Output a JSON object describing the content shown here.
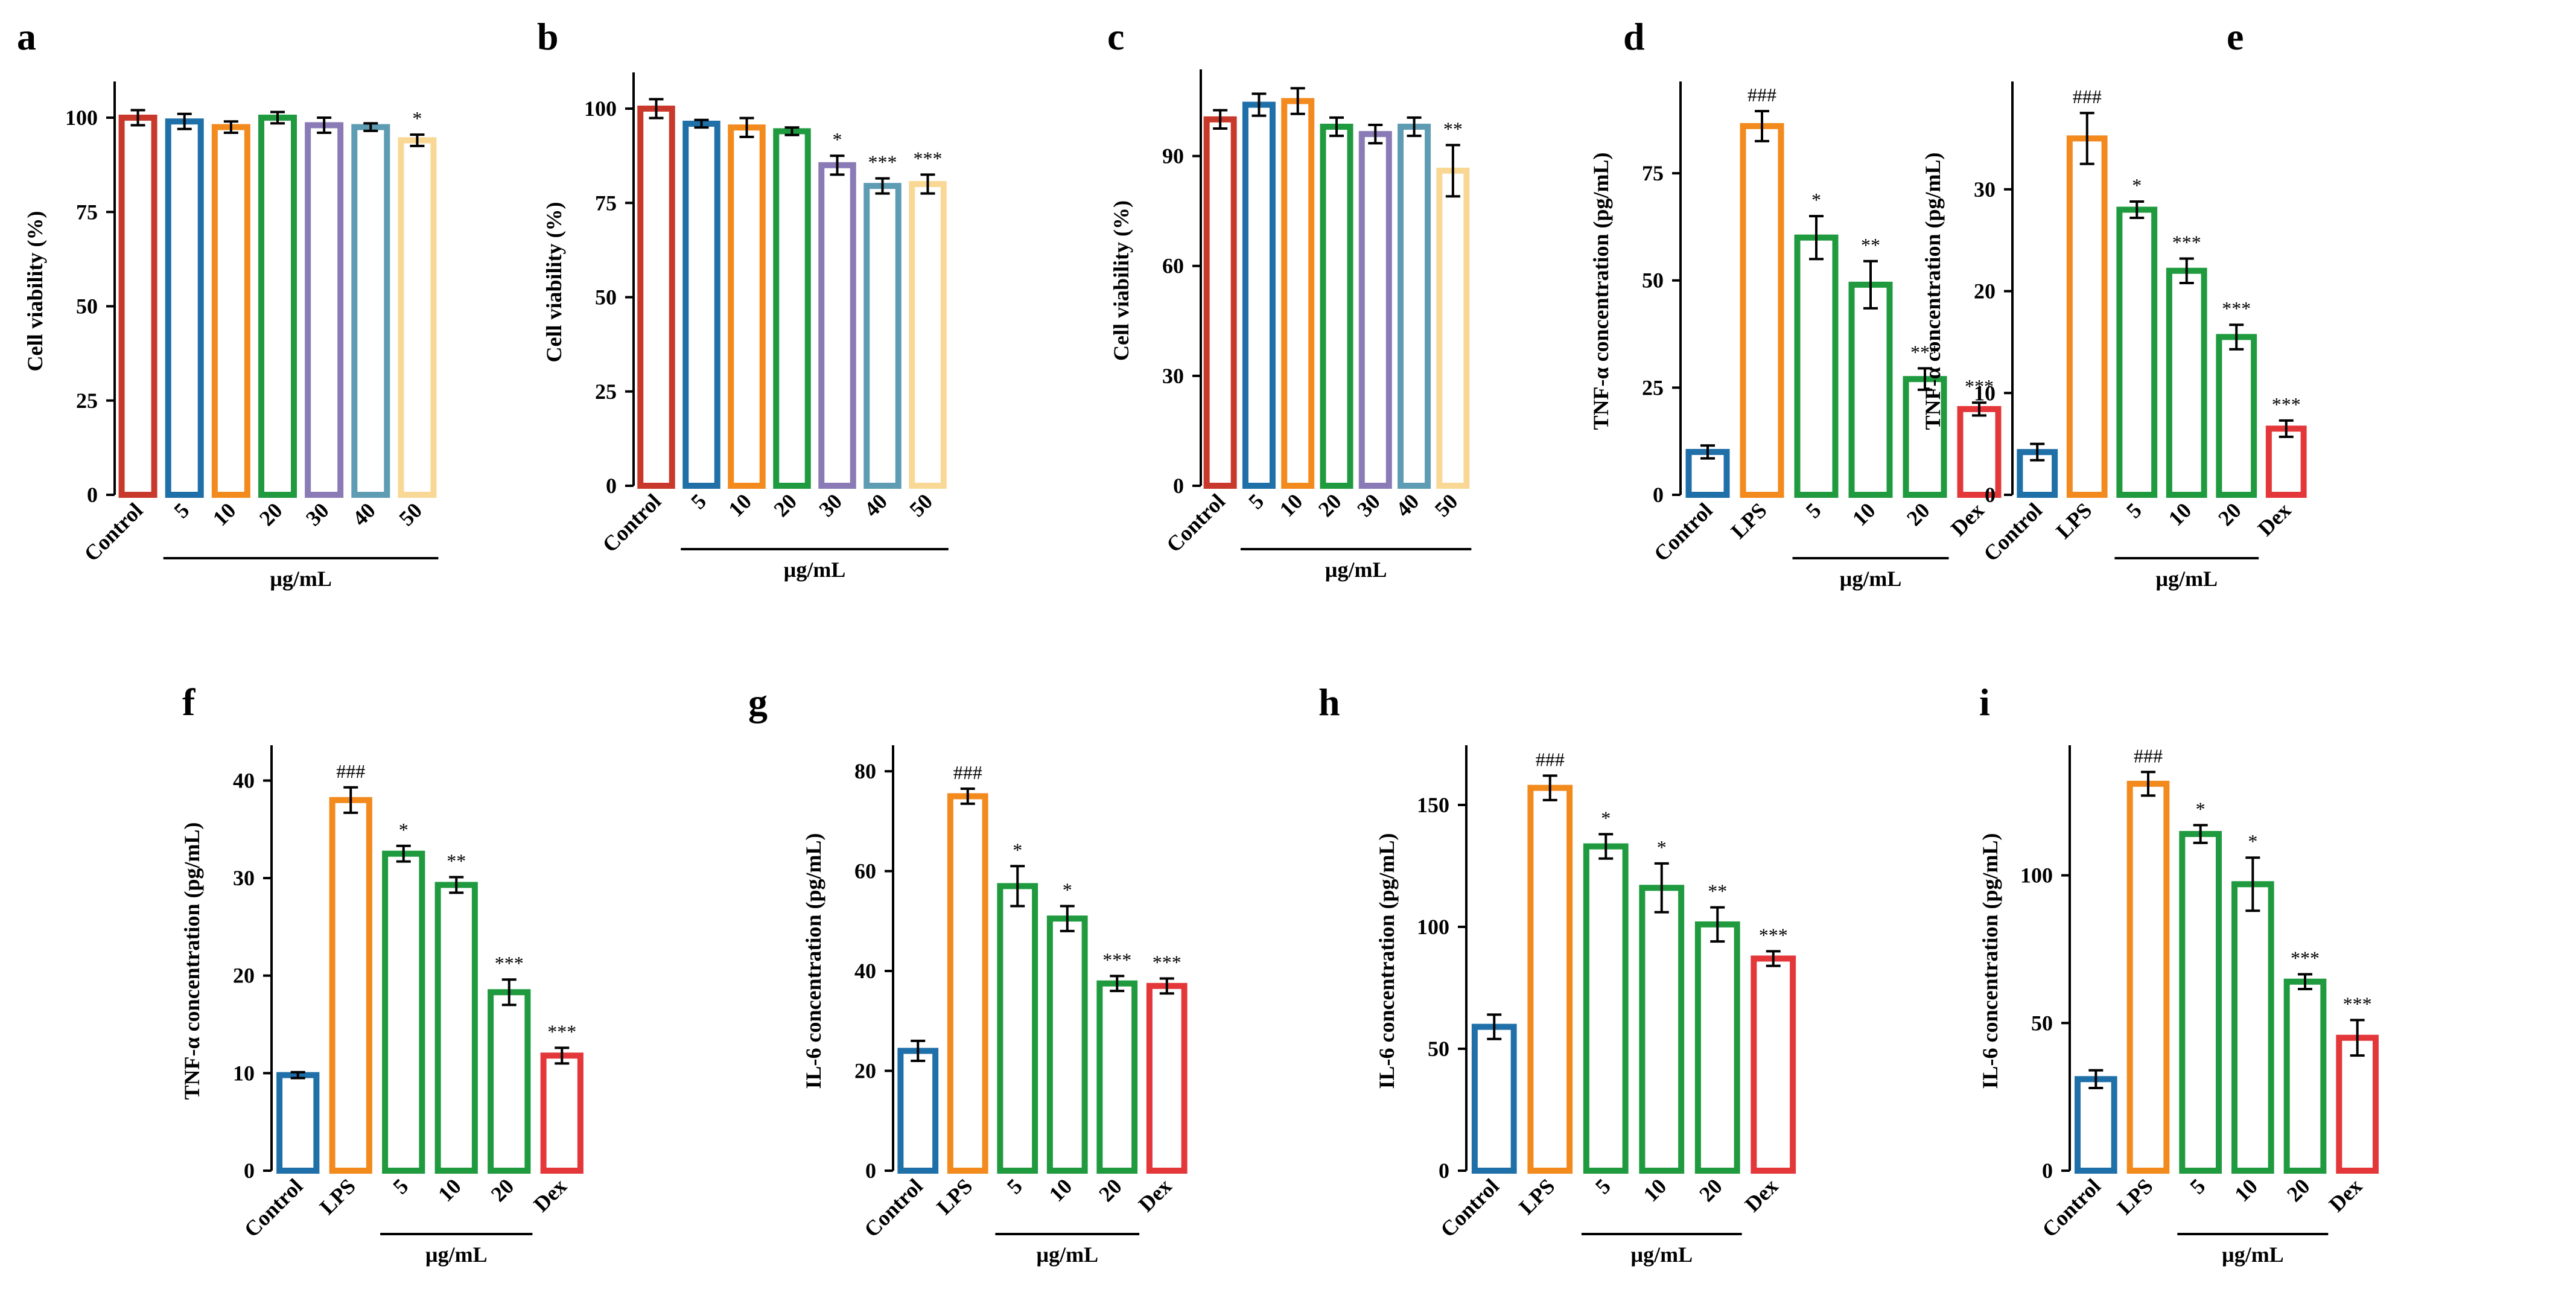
{
  "figure": {
    "colors": {
      "Control_a": "#c8392b",
      "Control": "#1f6fa8",
      "LPS": "#f28a1e",
      "Dex": "#e3373a",
      "dose": "#1f9a3e",
      "c5": "#1f6fa8",
      "c10": "#f28a1e",
      "c20": "#1f9a3e",
      "c30": "#8a7bb6",
      "c40": "#5e9cb4",
      "c50": "#f9d895"
    }
  },
  "chart_data": [
    {
      "id": "a",
      "panel_label": "a",
      "type": "bar",
      "ylabel": "Cell viability (%)",
      "ylim": [
        0,
        108
      ],
      "yticks": [
        0,
        25,
        50,
        75,
        100
      ],
      "yticklabels": [
        "0",
        "25",
        "50",
        "75",
        "100"
      ],
      "categories": [
        "Control",
        "5",
        "10",
        "20",
        "30",
        "40",
        "50"
      ],
      "values": [
        100,
        99,
        97.5,
        100,
        98,
        97.5,
        94
      ],
      "errors": [
        2,
        2,
        1.5,
        1.5,
        2,
        1,
        1.5
      ],
      "significance": [
        "",
        "",
        "",
        "",
        "",
        "",
        "*"
      ],
      "colors": [
        "#c8392b",
        "#1f6fa8",
        "#f28a1e",
        "#1f9a3e",
        "#8a7bb6",
        "#5e9cb4",
        "#f9d895"
      ],
      "group_label": "µg/mL"
    },
    {
      "id": "b",
      "panel_label": "b",
      "type": "bar",
      "ylabel": "Cell viability (%)",
      "ylim": [
        0,
        108
      ],
      "yticks": [
        0,
        25,
        50,
        75,
        100
      ],
      "yticklabels": [
        "0",
        "25",
        "50",
        "75",
        "100"
      ],
      "categories": [
        "Control",
        "5",
        "10",
        "20",
        "30",
        "40",
        "50"
      ],
      "values": [
        100,
        96,
        95,
        94,
        85,
        79.5,
        80
      ],
      "errors": [
        2.5,
        1,
        2.5,
        1,
        2.5,
        2,
        2.5
      ],
      "significance": [
        "",
        "",
        "",
        "",
        "*",
        "***",
        "***"
      ],
      "colors": [
        "#c8392b",
        "#1f6fa8",
        "#f28a1e",
        "#1f9a3e",
        "#8a7bb6",
        "#5e9cb4",
        "#f9d895"
      ],
      "group_label": "µg/mL"
    },
    {
      "id": "c",
      "panel_label": "c",
      "type": "bar",
      "ylabel": "Cell viability (%)",
      "ylim": [
        0,
        112
      ],
      "yticks": [
        0,
        30,
        60,
        90
      ],
      "yticklabels": [
        "0",
        "30",
        "60",
        "90"
      ],
      "categories": [
        "Control",
        "5",
        "10",
        "20",
        "30",
        "40",
        "50"
      ],
      "values": [
        100,
        104,
        105,
        98,
        96,
        98,
        86
      ],
      "errors": [
        2.5,
        3,
        3.5,
        2.5,
        2.5,
        2.5,
        7
      ],
      "significance": [
        "",
        "",
        "",
        "",
        "",
        "",
        "**"
      ],
      "colors": [
        "#c8392b",
        "#1f6fa8",
        "#f28a1e",
        "#1f9a3e",
        "#8a7bb6",
        "#5e9cb4",
        "#f9d895"
      ],
      "group_label": "µg/mL"
    },
    {
      "id": "d",
      "panel_label": "d",
      "type": "bar",
      "ylabel": "TNF-α concentration (pg/mL)",
      "ylim": [
        0,
        95
      ],
      "yticks": [
        0,
        25,
        50,
        75
      ],
      "yticklabels": [
        "0",
        "25",
        "50",
        "75"
      ],
      "categories": [
        "Control",
        "LPS",
        "5",
        "10",
        "20",
        "Dex"
      ],
      "values": [
        10,
        86,
        60,
        49,
        27,
        20
      ],
      "errors": [
        1.5,
        3.5,
        5,
        5.5,
        2.5,
        1.5
      ],
      "significance": [
        "",
        "###",
        "*",
        "**",
        "***",
        "***"
      ],
      "colors": [
        "#1f6fa8",
        "#f28a1e",
        "#1f9a3e",
        "#1f9a3e",
        "#1f9a3e",
        "#e3373a"
      ],
      "group_label": "µg/mL"
    },
    {
      "id": "e",
      "panel_label": "e",
      "type": "bar",
      "ylabel": "TNF-α concentration (pg/mL)",
      "ylim": [
        0,
        40
      ],
      "yticks": [
        0,
        10,
        20,
        30
      ],
      "yticklabels": [
        "0",
        "10",
        "20",
        "30"
      ],
      "categories": [
        "Control",
        "LPS",
        "5",
        "10",
        "20",
        "Dex"
      ],
      "values": [
        4.2,
        35,
        28,
        22,
        15.5,
        6.5
      ],
      "errors": [
        0.8,
        2.5,
        0.8,
        1.2,
        1.2,
        0.8
      ],
      "significance": [
        "",
        "###",
        "*",
        "***",
        "***",
        "***"
      ],
      "colors": [
        "#1f6fa8",
        "#f28a1e",
        "#1f9a3e",
        "#1f9a3e",
        "#1f9a3e",
        "#e3373a"
      ],
      "group_label": "µg/mL"
    },
    {
      "id": "f",
      "panel_label": "f",
      "type": "bar",
      "ylabel": "TNF-α concentration (pg/mL)",
      "ylim": [
        0,
        43
      ],
      "yticks": [
        0,
        10,
        20,
        30,
        40
      ],
      "yticklabels": [
        "0",
        "10",
        "20",
        "30",
        "40"
      ],
      "categories": [
        "Control",
        "LPS",
        "5",
        "10",
        "20",
        "Dex"
      ],
      "values": [
        9.8,
        38,
        32.5,
        29.3,
        18.3,
        11.8
      ],
      "errors": [
        0.3,
        1.3,
        0.8,
        0.8,
        1.3,
        0.8
      ],
      "significance": [
        "",
        "###",
        "*",
        "**",
        "***",
        "***"
      ],
      "colors": [
        "#1f6fa8",
        "#f28a1e",
        "#1f9a3e",
        "#1f9a3e",
        "#1f9a3e",
        "#e3373a"
      ],
      "group_label": "µg/mL"
    },
    {
      "id": "g",
      "panel_label": "g",
      "type": "bar",
      "ylabel": "IL-6 concentration (pg/mL)",
      "ylim": [
        0,
        84
      ],
      "yticks": [
        0,
        20,
        40,
        60,
        80
      ],
      "yticklabels": [
        "0",
        "20",
        "40",
        "60",
        "80"
      ],
      "categories": [
        "Control",
        "LPS",
        "5",
        "10",
        "20",
        "Dex"
      ],
      "values": [
        24,
        75,
        57,
        50.5,
        37.5,
        37
      ],
      "errors": [
        2,
        1.5,
        4,
        2.5,
        1.5,
        1.5
      ],
      "significance": [
        "",
        "###",
        "*",
        "*",
        "***",
        "***"
      ],
      "colors": [
        "#1f6fa8",
        "#f28a1e",
        "#1f9a3e",
        "#1f9a3e",
        "#1f9a3e",
        "#e3373a"
      ],
      "group_label": "µg/mL"
    },
    {
      "id": "h",
      "panel_label": "h",
      "type": "bar",
      "ylabel": "IL-6 concentration (pg/mL)",
      "ylim": [
        0,
        172
      ],
      "yticks": [
        0,
        50,
        100,
        150
      ],
      "yticklabels": [
        "0",
        "50",
        "100",
        "150"
      ],
      "categories": [
        "Control",
        "LPS",
        "5",
        "10",
        "20",
        "Dex"
      ],
      "values": [
        59,
        157,
        133,
        116,
        101,
        87
      ],
      "errors": [
        5,
        5,
        5,
        10,
        7,
        3
      ],
      "significance": [
        "",
        "###",
        "*",
        "*",
        "**",
        "***"
      ],
      "colors": [
        "#1f6fa8",
        "#f28a1e",
        "#1f9a3e",
        "#1f9a3e",
        "#1f9a3e",
        "#e3373a"
      ],
      "group_label": "µg/mL"
    },
    {
      "id": "i",
      "panel_label": "i",
      "type": "bar",
      "ylabel": "IL-6 concentration (pg/mL)",
      "ylim": [
        0,
        142
      ],
      "yticks": [
        0,
        50,
        100
      ],
      "yticklabels": [
        "0",
        "50",
        "100"
      ],
      "categories": [
        "Control",
        "LPS",
        "5",
        "10",
        "20",
        "Dex"
      ],
      "values": [
        31,
        131,
        114,
        97,
        64,
        45
      ],
      "errors": [
        3,
        4,
        3,
        9,
        2.5,
        6
      ],
      "significance": [
        "",
        "###",
        "*",
        "*",
        "***",
        "***"
      ],
      "colors": [
        "#1f6fa8",
        "#f28a1e",
        "#1f9a3e",
        "#1f9a3e",
        "#1f9a3e",
        "#e3373a"
      ],
      "group_label": "µg/mL"
    }
  ]
}
